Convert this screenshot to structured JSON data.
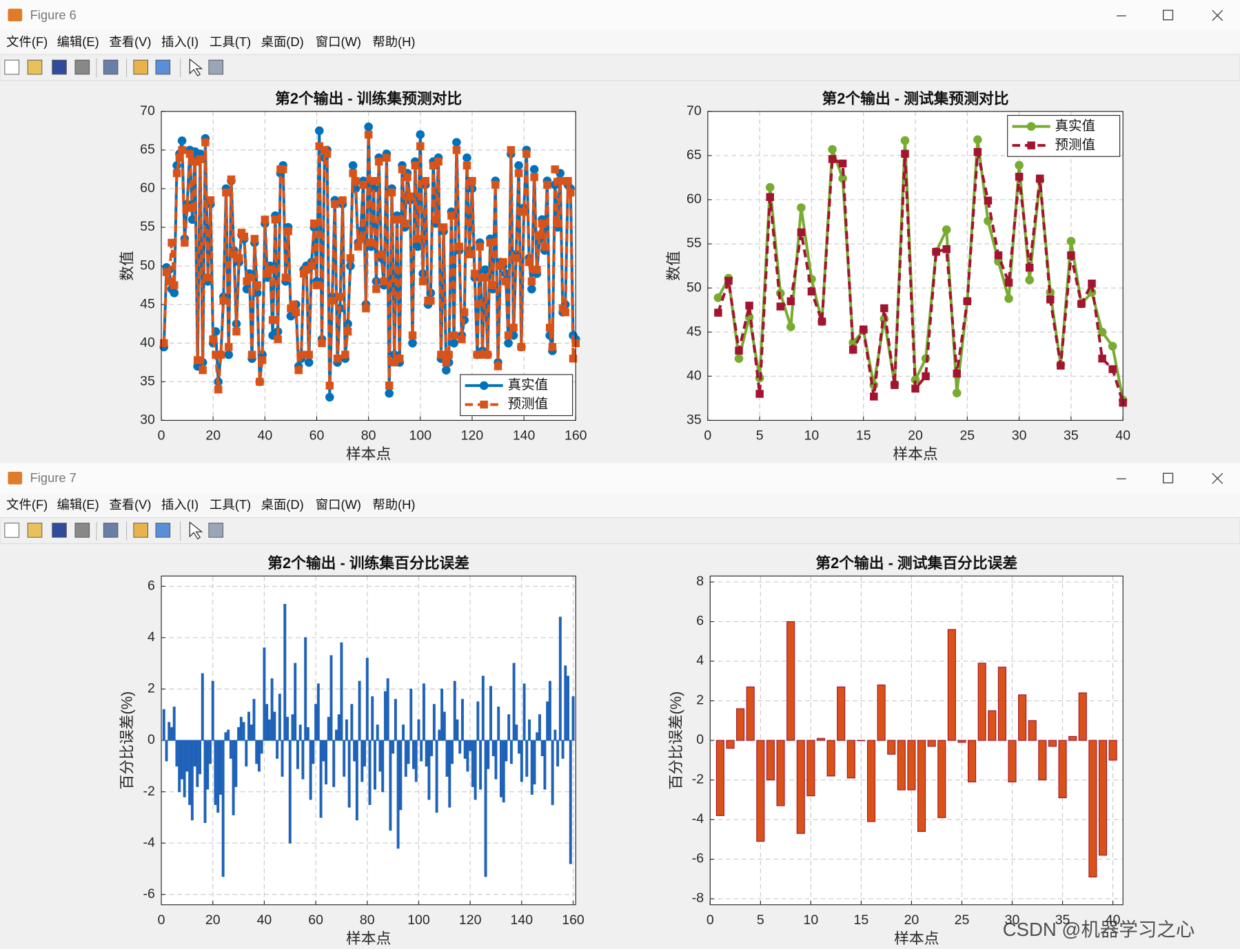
{
  "windows": [
    {
      "title": "Figure 6"
    },
    {
      "title": "Figure 7"
    }
  ],
  "menu": [
    "文件(F)",
    "编辑(E)",
    "查看(V)",
    "插入(I)",
    "工具(T)",
    "桌面(D)",
    "窗口(W)",
    "帮助(H)"
  ],
  "watermark": "CSDN @机器学习之心",
  "chart_data": [
    {
      "type": "line",
      "title": "第2个输出 - 训练集预测对比",
      "xlabel": "样本点",
      "ylabel": "数值",
      "xlim": [
        0,
        160
      ],
      "ylim": [
        30,
        70
      ],
      "xticks": [
        0,
        20,
        40,
        60,
        80,
        100,
        120,
        140,
        160
      ],
      "yticks": [
        30,
        35,
        40,
        45,
        50,
        55,
        60,
        65,
        70
      ],
      "grid": true,
      "legend": "southeast",
      "x": [
        1,
        2,
        3,
        4,
        5,
        6,
        7,
        8,
        9,
        10,
        11,
        12,
        13,
        14,
        15,
        16,
        17,
        18,
        19,
        20,
        21,
        22,
        23,
        24,
        25,
        26,
        27,
        28,
        29,
        30,
        31,
        32,
        33,
        34,
        35,
        36,
        37,
        38,
        39,
        40,
        41,
        42,
        43,
        44,
        45,
        46,
        47,
        48,
        49,
        50,
        51,
        52,
        53,
        54,
        55,
        56,
        57,
        58,
        59,
        60,
        61,
        62,
        63,
        64,
        65,
        66,
        67,
        68,
        69,
        70,
        71,
        72,
        73,
        74,
        75,
        76,
        77,
        78,
        79,
        80,
        81,
        82,
        83,
        84,
        85,
        86,
        87,
        88,
        89,
        90,
        91,
        92,
        93,
        94,
        95,
        96,
        97,
        98,
        99,
        100,
        101,
        102,
        103,
        104,
        105,
        106,
        107,
        108,
        109,
        110,
        111,
        112,
        113,
        114,
        115,
        116,
        117,
        118,
        119,
        120,
        121,
        122,
        123,
        124,
        125,
        126,
        127,
        128,
        129,
        130,
        131,
        132,
        133,
        134,
        135,
        136,
        137,
        138,
        139,
        140,
        141,
        142,
        143,
        144,
        145,
        146,
        147,
        148,
        149,
        150,
        151,
        152,
        153,
        154,
        155,
        156,
        157,
        158,
        159,
        160
      ],
      "series": [
        {
          "name": "真实值",
          "color": "#0072BD",
          "marker": "circle",
          "line": "solid",
          "values": [
            39.5,
            49.8,
            49.5,
            47.0,
            46.5,
            63.0,
            64.5,
            66.2,
            53.5,
            58.0,
            65.0,
            56.0,
            64.8,
            37.0,
            64.5,
            37.5,
            66.5,
            48.0,
            58.0,
            40.0,
            41.5,
            35.0,
            38.5,
            46.0,
            60.0,
            38.5,
            61.0,
            52.0,
            42.5,
            50.5,
            54.0,
            53.5,
            47.0,
            49.0,
            38.0,
            53.0,
            46.5,
            35.0,
            38.5,
            55.5,
            48.5,
            50.0,
            41.0,
            56.5,
            41.5,
            62.0,
            63.0,
            48.0,
            55.0,
            43.5,
            44.5,
            45.0,
            37.0,
            38.0,
            49.5,
            50.0,
            37.5,
            50.5,
            55.0,
            48.0,
            67.5,
            40.5,
            64.0,
            65.0,
            33.0,
            46.0,
            58.5,
            37.5,
            44.5,
            58.0,
            38.0,
            42.5,
            50.0,
            63.0,
            60.0,
            53.0,
            54.5,
            61.0,
            45.0,
            68.0,
            52.5,
            60.0,
            48.0,
            64.0,
            51.0,
            47.5,
            64.5,
            33.5,
            60.0,
            38.5,
            56.5,
            37.5,
            63.0,
            55.0,
            62.0,
            58.5,
            40.0,
            63.5,
            52.5,
            67.0,
            49.0,
            60.5,
            45.0,
            46.5,
            63.5,
            55.5,
            64.0,
            38.0,
            54.5,
            36.5,
            37.5,
            57.0,
            40.0,
            66.0,
            52.0,
            41.0,
            43.0,
            64.0,
            52.0,
            60.0,
            48.5,
            38.5,
            53.0,
            39.0,
            49.5,
            38.5,
            53.5,
            47.0,
            61.0,
            37.5,
            50.5,
            50.0,
            49.0,
            40.0,
            64.5,
            41.0,
            51.5,
            63.0,
            39.5,
            57.5,
            65.0,
            51.0,
            47.0,
            62.5,
            49.0,
            53.5,
            56.0,
            52.0,
            61.0,
            41.0,
            39.0,
            60.5,
            55.0,
            62.0,
            44.0,
            45.0,
            60.5,
            60.0,
            41.0,
            40.5
          ]
        },
        {
          "name": "预测值",
          "color": "#D95319",
          "marker": "square",
          "line": "dashed",
          "values": [
            40.0,
            49.2,
            48.0,
            53.0,
            47.5,
            62.0,
            64.0,
            65.0,
            53.0,
            57.5,
            64.5,
            57.5,
            63.5,
            37.8,
            63.8,
            36.5,
            66.0,
            48.5,
            58.5,
            40.5,
            38.5,
            34.0,
            38.5,
            45.5,
            59.5,
            39.5,
            61.2,
            51.5,
            41.5,
            51.0,
            54.3,
            53.8,
            48.0,
            48.5,
            38.5,
            53.5,
            47.5,
            35.0,
            37.8,
            56.0,
            49.0,
            49.5,
            43.0,
            56.0,
            40.5,
            62.5,
            62.5,
            48.5,
            54.5,
            44.5,
            45.0,
            44.0,
            36.5,
            38.5,
            49.0,
            49.5,
            38.5,
            50.0,
            55.5,
            47.5,
            65.5,
            40.0,
            65.0,
            64.5,
            34.5,
            45.5,
            58.0,
            38.0,
            46.0,
            58.5,
            38.5,
            41.5,
            51.0,
            62.0,
            61.0,
            52.5,
            53.5,
            60.5,
            44.5,
            67.0,
            53.0,
            61.0,
            47.0,
            63.5,
            51.5,
            48.0,
            64.0,
            34.5,
            59.5,
            37.5,
            56.0,
            38.0,
            62.5,
            55.5,
            61.5,
            59.0,
            41.0,
            63.0,
            53.5,
            65.5,
            48.0,
            61.0,
            45.5,
            45.5,
            63.0,
            56.0,
            63.5,
            38.5,
            55.0,
            37.5,
            38.5,
            56.5,
            41.0,
            65.0,
            52.5,
            40.5,
            44.0,
            63.0,
            51.5,
            61.0,
            49.0,
            38.5,
            52.5,
            38.5,
            48.5,
            38.5,
            53.0,
            47.5,
            60.5,
            37.0,
            50.0,
            50.5,
            48.0,
            41.0,
            65.0,
            42.0,
            51.0,
            62.0,
            39.5,
            57.0,
            64.5,
            50.5,
            48.0,
            61.5,
            49.5,
            54.0,
            55.5,
            52.5,
            60.5,
            42.0,
            39.5,
            62.5,
            55.5,
            61.0,
            44.5,
            44.0,
            61.0,
            59.5,
            38.0,
            40.0
          ]
        }
      ]
    },
    {
      "type": "line",
      "title": "第2个输出 - 测试集预测对比",
      "xlabel": "样本点",
      "ylabel": "数值",
      "xlim": [
        0,
        40
      ],
      "ylim": [
        35,
        70
      ],
      "xticks": [
        0,
        5,
        10,
        15,
        20,
        25,
        30,
        35,
        40
      ],
      "yticks": [
        35,
        40,
        45,
        50,
        55,
        60,
        65,
        70
      ],
      "grid": true,
      "legend": "northeast",
      "x": [
        1,
        2,
        3,
        4,
        5,
        6,
        7,
        8,
        9,
        10,
        11,
        12,
        13,
        14,
        15,
        16,
        17,
        18,
        19,
        20,
        21,
        22,
        23,
        24,
        25,
        26,
        27,
        28,
        29,
        30,
        31,
        32,
        33,
        34,
        35,
        36,
        37,
        38,
        39,
        40
      ],
      "series": [
        {
          "name": "真实值",
          "color": "#77AC30",
          "marker": "circle",
          "line": "solid",
          "values": [
            48.9,
            51.1,
            42.0,
            46.7,
            39.8,
            61.4,
            49.4,
            45.6,
            59.1,
            51.0,
            46.2,
            65.7,
            62.4,
            43.8,
            45.2,
            39.0,
            46.5,
            39.1,
            66.7,
            39.6,
            42.0,
            54.1,
            56.6,
            38.1,
            48.5,
            66.8,
            57.6,
            53.0,
            48.8,
            63.9,
            50.9,
            62.2,
            49.5,
            41.3,
            55.3,
            48.2,
            49.5,
            45.0,
            43.4,
            37.3
          ]
        },
        {
          "name": "预测值",
          "color": "#A2142F",
          "marker": "square",
          "line": "dashed",
          "values": [
            47.2,
            50.8,
            42.9,
            48.0,
            38.0,
            60.3,
            47.9,
            48.5,
            56.3,
            49.6,
            46.2,
            64.6,
            64.1,
            43.0,
            45.3,
            37.7,
            47.7,
            39.0,
            65.2,
            38.6,
            40.0,
            54.1,
            54.4,
            40.3,
            48.5,
            65.4,
            59.9,
            53.7,
            50.6,
            62.6,
            52.3,
            62.4,
            48.7,
            41.2,
            53.7,
            48.2,
            50.5,
            42.0,
            40.8,
            37.0
          ]
        }
      ]
    },
    {
      "type": "bar",
      "title": "第2个输出 - 训练集百分比误差",
      "xlabel": "样本点",
      "ylabel": "百分比误差(%)",
      "xlim": [
        0,
        161
      ],
      "ylim": [
        -6.4,
        6.4
      ],
      "xticks": [
        0,
        20,
        40,
        60,
        80,
        100,
        120,
        140,
        160
      ],
      "yticks": [
        -6,
        -4,
        -2,
        0,
        2,
        4,
        6
      ],
      "grid": true,
      "color": "#1F62B8",
      "edgecolor": "#1F62B8",
      "x": [
        1,
        2,
        3,
        4,
        5,
        6,
        7,
        8,
        9,
        10,
        11,
        12,
        13,
        14,
        15,
        16,
        17,
        18,
        19,
        20,
        21,
        22,
        23,
        24,
        25,
        26,
        27,
        28,
        29,
        30,
        31,
        32,
        33,
        34,
        35,
        36,
        37,
        38,
        39,
        40,
        41,
        42,
        43,
        44,
        45,
        46,
        47,
        48,
        49,
        50,
        51,
        52,
        53,
        54,
        55,
        56,
        57,
        58,
        59,
        60,
        61,
        62,
        63,
        64,
        65,
        66,
        67,
        68,
        69,
        70,
        71,
        72,
        73,
        74,
        75,
        76,
        77,
        78,
        79,
        80,
        81,
        82,
        83,
        84,
        85,
        86,
        87,
        88,
        89,
        90,
        91,
        92,
        93,
        94,
        95,
        96,
        97,
        98,
        99,
        100,
        101,
        102,
        103,
        104,
        105,
        106,
        107,
        108,
        109,
        110,
        111,
        112,
        113,
        114,
        115,
        116,
        117,
        118,
        119,
        120,
        121,
        122,
        123,
        124,
        125,
        126,
        127,
        128,
        129,
        130,
        131,
        132,
        133,
        134,
        135,
        136,
        137,
        138,
        139,
        140,
        141,
        142,
        143,
        144,
        145,
        146,
        147,
        148,
        149,
        150,
        151,
        152,
        153,
        154,
        155,
        156,
        157,
        158,
        159,
        160
      ],
      "values": [
        1.2,
        -0.8,
        0.7,
        0.5,
        1.3,
        -1.0,
        -2.0,
        -1.5,
        -2.2,
        -1.2,
        -2.5,
        -3.1,
        -1.0,
        -1.8,
        -1.3,
        2.6,
        -3.2,
        -1.9,
        -0.9,
        2.3,
        -2.5,
        -2.8,
        -2.1,
        -5.3,
        0.3,
        0.4,
        -0.7,
        -2.9,
        -1.8,
        0.5,
        0.9,
        0.7,
        -1.0,
        1.1,
        0.6,
        1.6,
        -0.9,
        -1.2,
        -0.5,
        3.6,
        1.4,
        0.8,
        2.4,
        1.1,
        -0.7,
        1.8,
        -1.4,
        5.3,
        0.9,
        -4.0,
        1.0,
        3.0,
        -1.1,
        0.6,
        -1.5,
        4.0,
        0.5,
        -2.3,
        -0.9,
        1.4,
        2.2,
        -3.0,
        -0.8,
        -1.7,
        0.9,
        3.3,
        -1.8,
        0.4,
        1.0,
        3.8,
        -1.4,
        0.8,
        -2.6,
        1.4,
        -0.8,
        -3.1,
        2.3,
        -1.6,
        -1.0,
        3.2,
        -2.5,
        1.7,
        -1.9,
        0.6,
        -1.2,
        -2.0,
        1.9,
        2.4,
        -3.5,
        -0.5,
        1.6,
        -4.2,
        -2.7,
        0.6,
        -1.4,
        -0.9,
        2.0,
        -1.1,
        -1.6,
        0.8,
        -0.8,
        2.2,
        -1.0,
        -2.3,
        -0.6,
        1.4,
        -2.8,
        0.4,
        2.0,
        1.1,
        -1.4,
        -2.6,
        -0.9,
        2.3,
        0.8,
        -0.5,
        1.6,
        -0.7,
        -1.2,
        -0.4,
        -1.8,
        -2.3,
        1.5,
        -1.9,
        2.5,
        -5.3,
        -1.1,
        2.1,
        -0.6,
        -1.5,
        1.3,
        -2.2,
        -2.4,
        -0.8,
        1.0,
        -0.9,
        3.0,
        0.6,
        -0.5,
        -1.6,
        2.2,
        -1.4,
        0.8,
        -2.1,
        -1.7,
        0.3,
        1.0,
        -0.6,
        -1.9,
        1.5,
        2.3,
        -2.5,
        0.4,
        -1.0,
        4.8,
        -0.7,
        2.9,
        2.5,
        -4.8,
        1.7
      ]
    },
    {
      "type": "bar",
      "title": "第2个输出 - 测试集百分比误差",
      "xlabel": "样本点",
      "ylabel": "百分比误差(%)",
      "xlim": [
        0,
        41
      ],
      "ylim": [
        -8.3,
        8.3
      ],
      "xticks": [
        0,
        5,
        10,
        15,
        20,
        25,
        30,
        35,
        40
      ],
      "yticks": [
        -8,
        -6,
        -4,
        -2,
        0,
        2,
        4,
        6,
        8
      ],
      "grid": true,
      "color": "#D95319",
      "edgecolor": "#A2142F",
      "x": [
        1,
        2,
        3,
        4,
        5,
        6,
        7,
        8,
        9,
        10,
        11,
        12,
        13,
        14,
        15,
        16,
        17,
        18,
        19,
        20,
        21,
        22,
        23,
        24,
        25,
        26,
        27,
        28,
        29,
        30,
        31,
        32,
        33,
        34,
        35,
        36,
        37,
        38,
        39,
        40
      ],
      "values": [
        -3.8,
        -0.4,
        1.6,
        2.7,
        -5.1,
        -2.0,
        -3.3,
        6.0,
        -4.7,
        -2.8,
        0.1,
        -1.8,
        2.7,
        -1.9,
        0.0,
        -4.1,
        2.8,
        -0.7,
        -2.5,
        -2.5,
        -4.6,
        -0.3,
        -3.9,
        5.6,
        -0.1,
        -2.1,
        3.9,
        1.5,
        3.7,
        -2.1,
        2.3,
        1.0,
        -2.0,
        -0.3,
        -2.9,
        0.2,
        2.4,
        -6.9,
        -5.8,
        -1.0
      ]
    }
  ]
}
